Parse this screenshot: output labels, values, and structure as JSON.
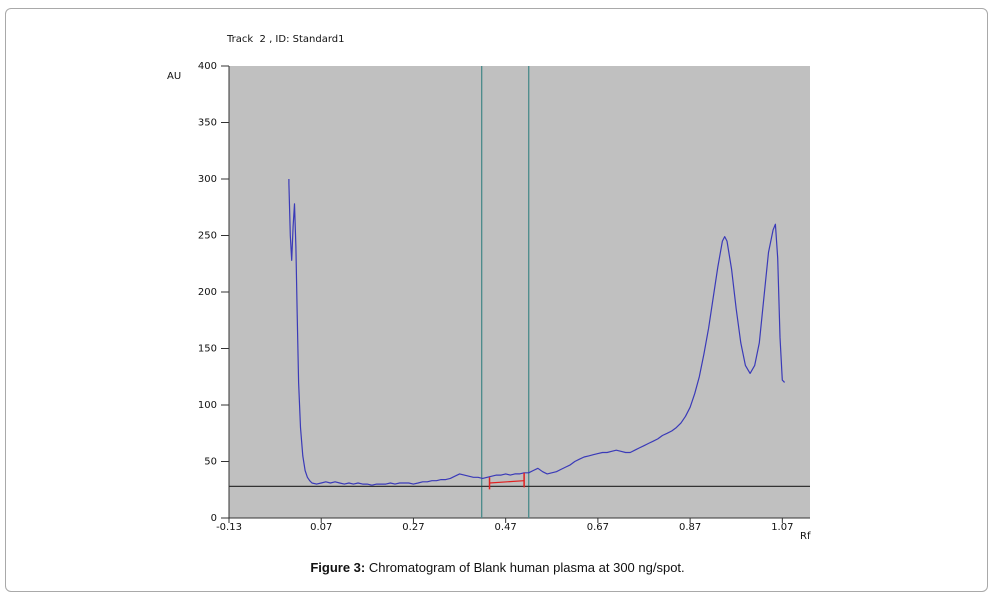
{
  "figure": {
    "caption_label": "Figure 3:",
    "caption_text": " Chromatogram of Blank human plasma at 300 ng/spot."
  },
  "chart_data": {
    "type": "line",
    "title": "Track  2 , ID: Standard1",
    "xlabel": "Rf",
    "ylabel": "AU",
    "xlim": [
      -0.13,
      1.13
    ],
    "ylim": [
      0,
      400
    ],
    "x_ticks": [
      -0.13,
      0.07,
      0.27,
      0.47,
      0.67,
      0.87,
      1.07
    ],
    "x_tick_labels": [
      "-0.13",
      "0.07",
      "0.27",
      "0.47",
      "0.67",
      "0.87",
      "1.07"
    ],
    "y_ticks": [
      0,
      50,
      100,
      150,
      200,
      250,
      300,
      350,
      400
    ],
    "y_tick_labels": [
      "0",
      "50",
      "100",
      "150",
      "200",
      "250",
      "300",
      "350",
      "400"
    ],
    "grid": false,
    "colors": {
      "plot_background": "#c0c0c0",
      "trace": "#3a3ab8",
      "baseline": "#333333",
      "markers": "#4a8a8a",
      "integration": "#e02020"
    },
    "baseline_au": 28,
    "vertical_markers_rf": [
      0.418,
      0.52
    ],
    "integration": {
      "rf_start": 0.435,
      "rf_end": 0.51
    },
    "series": [
      {
        "points": [
          [
            -0.0,
            300
          ],
          [
            0.0,
            296
          ],
          [
            0.003,
            250
          ],
          [
            0.006,
            228
          ],
          [
            0.009,
            258
          ],
          [
            0.012,
            278
          ],
          [
            0.015,
            240
          ],
          [
            0.018,
            180
          ],
          [
            0.021,
            120
          ],
          [
            0.025,
            80
          ],
          [
            0.03,
            55
          ],
          [
            0.035,
            42
          ],
          [
            0.04,
            36
          ],
          [
            0.045,
            33
          ],
          [
            0.05,
            31
          ],
          [
            0.06,
            30
          ],
          [
            0.07,
            31
          ],
          [
            0.08,
            32
          ],
          [
            0.09,
            31
          ],
          [
            0.1,
            32
          ],
          [
            0.11,
            31
          ],
          [
            0.12,
            30
          ],
          [
            0.13,
            31
          ],
          [
            0.14,
            30
          ],
          [
            0.15,
            31
          ],
          [
            0.16,
            30
          ],
          [
            0.17,
            30
          ],
          [
            0.18,
            29
          ],
          [
            0.19,
            30
          ],
          [
            0.2,
            30
          ],
          [
            0.21,
            30
          ],
          [
            0.22,
            31
          ],
          [
            0.23,
            30
          ],
          [
            0.24,
            31
          ],
          [
            0.25,
            31
          ],
          [
            0.26,
            31
          ],
          [
            0.27,
            30
          ],
          [
            0.28,
            31
          ],
          [
            0.29,
            32
          ],
          [
            0.3,
            32
          ],
          [
            0.31,
            33
          ],
          [
            0.32,
            33
          ],
          [
            0.33,
            34
          ],
          [
            0.34,
            34
          ],
          [
            0.35,
            35
          ],
          [
            0.36,
            37
          ],
          [
            0.37,
            39
          ],
          [
            0.38,
            38
          ],
          [
            0.39,
            37
          ],
          [
            0.4,
            36
          ],
          [
            0.41,
            36
          ],
          [
            0.42,
            35
          ],
          [
            0.43,
            36
          ],
          [
            0.44,
            37
          ],
          [
            0.45,
            38
          ],
          [
            0.46,
            38
          ],
          [
            0.47,
            39
          ],
          [
            0.48,
            38
          ],
          [
            0.49,
            39
          ],
          [
            0.5,
            39
          ],
          [
            0.51,
            40
          ],
          [
            0.52,
            40
          ],
          [
            0.53,
            42
          ],
          [
            0.54,
            44
          ],
          [
            0.55,
            41
          ],
          [
            0.56,
            39
          ],
          [
            0.57,
            40
          ],
          [
            0.58,
            41
          ],
          [
            0.59,
            43
          ],
          [
            0.6,
            45
          ],
          [
            0.61,
            47
          ],
          [
            0.62,
            50
          ],
          [
            0.63,
            52
          ],
          [
            0.64,
            54
          ],
          [
            0.65,
            55
          ],
          [
            0.66,
            56
          ],
          [
            0.67,
            57
          ],
          [
            0.68,
            58
          ],
          [
            0.69,
            58
          ],
          [
            0.7,
            59
          ],
          [
            0.71,
            60
          ],
          [
            0.72,
            59
          ],
          [
            0.73,
            58
          ],
          [
            0.74,
            58
          ],
          [
            0.75,
            60
          ],
          [
            0.76,
            62
          ],
          [
            0.77,
            64
          ],
          [
            0.78,
            66
          ],
          [
            0.79,
            68
          ],
          [
            0.8,
            70
          ],
          [
            0.81,
            73
          ],
          [
            0.82,
            75
          ],
          [
            0.83,
            77
          ],
          [
            0.84,
            80
          ],
          [
            0.85,
            84
          ],
          [
            0.86,
            90
          ],
          [
            0.87,
            98
          ],
          [
            0.88,
            110
          ],
          [
            0.89,
            125
          ],
          [
            0.9,
            145
          ],
          [
            0.91,
            168
          ],
          [
            0.92,
            195
          ],
          [
            0.93,
            222
          ],
          [
            0.94,
            245
          ],
          [
            0.945,
            249
          ],
          [
            0.95,
            245
          ],
          [
            0.96,
            220
          ],
          [
            0.97,
            185
          ],
          [
            0.98,
            155
          ],
          [
            0.99,
            135
          ],
          [
            1.0,
            128
          ],
          [
            1.01,
            135
          ],
          [
            1.02,
            155
          ],
          [
            1.03,
            195
          ],
          [
            1.04,
            235
          ],
          [
            1.05,
            255
          ],
          [
            1.055,
            260
          ],
          [
            1.06,
            230
          ],
          [
            1.065,
            160
          ],
          [
            1.07,
            122
          ],
          [
            1.075,
            120
          ]
        ]
      }
    ]
  }
}
